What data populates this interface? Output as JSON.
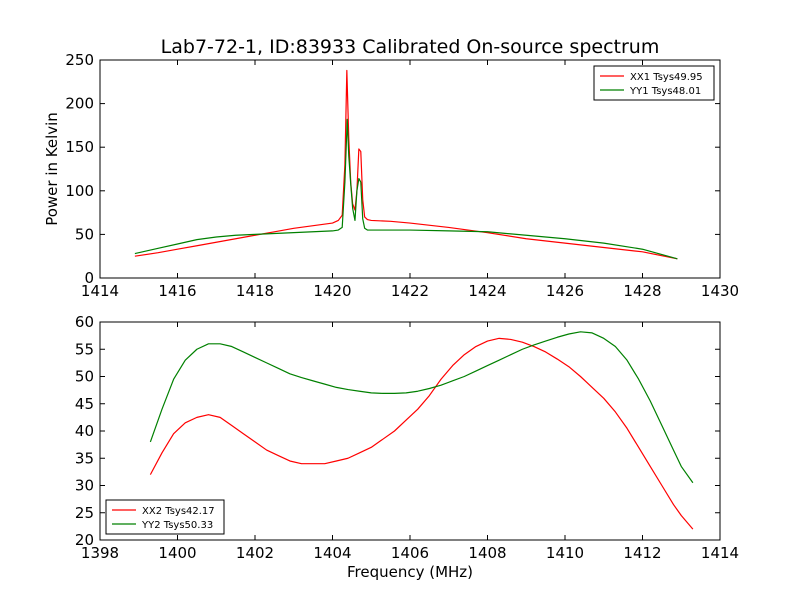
{
  "chart_data": [
    {
      "type": "line",
      "title": "Lab7-72-1, ID:83933 Calibrated On-source spectrum",
      "xlabel": "",
      "ylabel": "Power in Kelvin",
      "xlim": [
        1414,
        1430
      ],
      "ylim": [
        0,
        250
      ],
      "xticks": [
        "1414",
        "1416",
        "1418",
        "1420",
        "1422",
        "1424",
        "1426",
        "1428",
        "1430"
      ],
      "yticks": [
        "0",
        "50",
        "100",
        "150",
        "200",
        "250"
      ],
      "legend_position": "top-right",
      "grid": false,
      "series": [
        {
          "name": "XX1 Tsys49.95",
          "color": "#ff0000",
          "x": [
            1414.9,
            1415.5,
            1416.0,
            1416.5,
            1417.0,
            1417.5,
            1418.0,
            1418.5,
            1419.0,
            1419.5,
            1420.0,
            1420.15,
            1420.25,
            1420.32,
            1420.37,
            1420.42,
            1420.47,
            1420.52,
            1420.58,
            1420.63,
            1420.68,
            1420.73,
            1420.78,
            1420.83,
            1420.9,
            1421.0,
            1421.5,
            1422.0,
            1423.0,
            1424.0,
            1425.0,
            1426.0,
            1427.0,
            1428.0,
            1428.9
          ],
          "y": [
            25,
            29,
            33,
            37,
            41,
            45,
            49,
            53,
            57,
            60,
            63,
            66,
            72,
            130,
            238,
            160,
            110,
            85,
            78,
            100,
            148,
            145,
            90,
            70,
            67,
            66,
            65,
            63,
            58,
            52,
            45,
            40,
            35,
            30,
            22
          ]
        },
        {
          "name": "YY1 Tsys48.01",
          "color": "#008000",
          "x": [
            1414.9,
            1415.5,
            1416.0,
            1416.5,
            1417.0,
            1417.5,
            1418.0,
            1418.5,
            1419.0,
            1419.5,
            1420.0,
            1420.15,
            1420.25,
            1420.32,
            1420.38,
            1420.42,
            1420.47,
            1420.52,
            1420.58,
            1420.63,
            1420.68,
            1420.73,
            1420.78,
            1420.83,
            1420.9,
            1421.0,
            1421.5,
            1422.0,
            1423.0,
            1424.0,
            1425.0,
            1426.0,
            1427.0,
            1428.0,
            1428.9
          ],
          "y": [
            28,
            34,
            39,
            44,
            47,
            49,
            50,
            51,
            52,
            53,
            54,
            55,
            58,
            110,
            182,
            140,
            108,
            80,
            66,
            100,
            114,
            110,
            68,
            57,
            55,
            55,
            55,
            55,
            54,
            53,
            49,
            45,
            40,
            33,
            22
          ]
        }
      ]
    },
    {
      "type": "line",
      "title": "",
      "xlabel": "Frequency (MHz)",
      "ylabel": "",
      "xlim": [
        1398,
        1414
      ],
      "ylim": [
        20,
        60
      ],
      "xticks": [
        "1398",
        "1400",
        "1402",
        "1404",
        "1406",
        "1408",
        "1410",
        "1412",
        "1414"
      ],
      "yticks": [
        "20",
        "25",
        "30",
        "35",
        "40",
        "45",
        "50",
        "55",
        "60"
      ],
      "legend_position": "bottom-left",
      "grid": false,
      "series": [
        {
          "name": "XX2 Tsys42.17",
          "color": "#ff0000",
          "x": [
            1399.3,
            1399.6,
            1399.9,
            1400.2,
            1400.5,
            1400.8,
            1401.1,
            1401.4,
            1401.7,
            1402.0,
            1402.3,
            1402.6,
            1402.9,
            1403.2,
            1403.5,
            1403.8,
            1404.1,
            1404.4,
            1404.7,
            1405.0,
            1405.3,
            1405.6,
            1405.9,
            1406.2,
            1406.5,
            1406.8,
            1407.1,
            1407.4,
            1407.7,
            1408.0,
            1408.3,
            1408.6,
            1408.9,
            1409.2,
            1409.5,
            1409.8,
            1410.1,
            1410.4,
            1410.7,
            1411.0,
            1411.3,
            1411.6,
            1411.9,
            1412.2,
            1412.5,
            1412.8,
            1413.0,
            1413.3
          ],
          "y": [
            32,
            36,
            39.5,
            41.5,
            42.5,
            43,
            42.5,
            41,
            39.5,
            38,
            36.5,
            35.5,
            34.5,
            34,
            34,
            34,
            34.5,
            35,
            36,
            37,
            38.5,
            40,
            42,
            44,
            46.5,
            49.5,
            52,
            54,
            55.5,
            56.5,
            57,
            56.8,
            56.3,
            55.5,
            54.5,
            53.2,
            51.8,
            50,
            48,
            46,
            43.5,
            40.5,
            37,
            33.5,
            30,
            26.5,
            24.5,
            22
          ]
        },
        {
          "name": "YY2 Tsys50.33",
          "color": "#008000",
          "x": [
            1399.3,
            1399.6,
            1399.9,
            1400.2,
            1400.5,
            1400.8,
            1401.1,
            1401.4,
            1401.7,
            1402.0,
            1402.3,
            1402.6,
            1402.9,
            1403.2,
            1403.5,
            1403.8,
            1404.1,
            1404.4,
            1404.7,
            1405.0,
            1405.3,
            1405.6,
            1405.9,
            1406.2,
            1406.5,
            1406.8,
            1407.1,
            1407.4,
            1407.7,
            1408.0,
            1408.3,
            1408.6,
            1408.9,
            1409.2,
            1409.5,
            1409.8,
            1410.1,
            1410.4,
            1410.7,
            1411.0,
            1411.3,
            1411.6,
            1411.9,
            1412.2,
            1412.5,
            1412.8,
            1413.0,
            1413.3
          ],
          "y": [
            38,
            44,
            49.5,
            53,
            55,
            56,
            56,
            55.5,
            54.5,
            53.5,
            52.5,
            51.5,
            50.5,
            49.8,
            49.2,
            48.6,
            48,
            47.6,
            47.3,
            47,
            46.9,
            46.9,
            47,
            47.3,
            47.8,
            48.4,
            49.2,
            50,
            51,
            52,
            53,
            54,
            55,
            55.8,
            56.5,
            57.2,
            57.8,
            58.2,
            58,
            57,
            55.5,
            53,
            49.5,
            45.5,
            41,
            36.5,
            33.5,
            30.5
          ]
        }
      ]
    }
  ]
}
